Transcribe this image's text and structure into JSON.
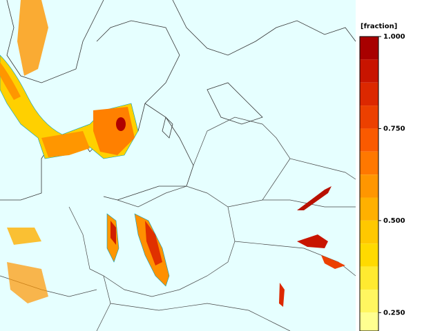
{
  "legend": {
    "title": "[fraction]",
    "range": [
      0.2,
      1
    ],
    "step": 0.0625,
    "ticks": [
      {
        "value": 1,
        "label": "1.000"
      },
      {
        "value": 0.75,
        "label": "0.750"
      },
      {
        "value": 0.5,
        "label": "0.500"
      },
      {
        "value": 0.25,
        "label": "0.250"
      }
    ],
    "colors": [
      "#a80000",
      "#c81400",
      "#dc2800",
      "#ec4000",
      "#fa5a00",
      "#ff7800",
      "#ff9600",
      "#ffb000",
      "#ffc800",
      "#ffda00",
      "#ffea30",
      "#fff660",
      "#ffff90"
    ]
  }
}
